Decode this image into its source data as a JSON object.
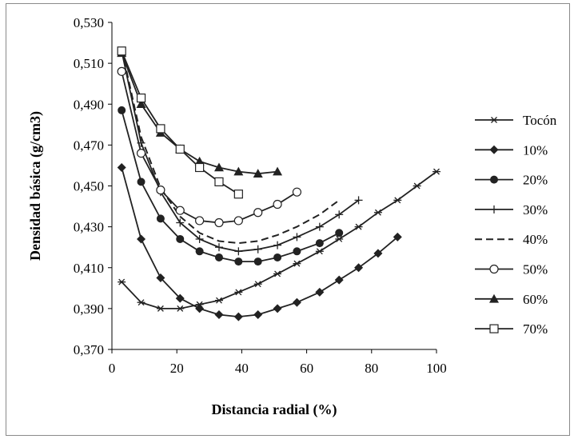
{
  "chart_data": {
    "type": "line",
    "title": "",
    "xlabel": "Distancia radial (%)",
    "ylabel": "Densidad básica (g/cm3)",
    "xlim": [
      0,
      100
    ],
    "ylim": [
      0.37,
      0.53
    ],
    "xticks": [
      "0",
      "20",
      "40",
      "60",
      "80",
      "100"
    ],
    "yticks": [
      "0,370",
      "0,390",
      "0,410",
      "0,430",
      "0,450",
      "0,470",
      "0,490",
      "0,510",
      "0,530"
    ],
    "grid": false,
    "legend_position": "right",
    "line_color": "#222222",
    "series": [
      {
        "name": "Tocón",
        "marker": "star",
        "x": [
          3,
          9,
          15,
          21,
          27,
          33,
          39,
          45,
          51,
          57,
          64,
          70,
          76,
          82,
          88,
          94,
          100
        ],
        "y": [
          0.403,
          0.393,
          0.39,
          0.39,
          0.392,
          0.394,
          0.398,
          0.402,
          0.407,
          0.412,
          0.418,
          0.424,
          0.43,
          0.437,
          0.443,
          0.45,
          0.457
        ]
      },
      {
        "name": "10%",
        "marker": "diamond",
        "x": [
          3,
          9,
          15,
          21,
          27,
          33,
          39,
          45,
          51,
          57,
          64,
          70,
          76,
          82,
          88
        ],
        "y": [
          0.459,
          0.424,
          0.405,
          0.395,
          0.39,
          0.387,
          0.386,
          0.387,
          0.39,
          0.393,
          0.398,
          0.404,
          0.41,
          0.417,
          0.425
        ]
      },
      {
        "name": "20%",
        "marker": "circle-filled",
        "x": [
          3,
          9,
          15,
          21,
          27,
          33,
          39,
          45,
          51,
          57,
          64,
          70
        ],
        "y": [
          0.487,
          0.452,
          0.434,
          0.424,
          0.418,
          0.415,
          0.413,
          0.413,
          0.415,
          0.418,
          0.422,
          0.427
        ]
      },
      {
        "name": "30%",
        "marker": "plus",
        "x": [
          3,
          9,
          15,
          21,
          27,
          33,
          39,
          45,
          51,
          57,
          64,
          70,
          76
        ],
        "y": [
          0.516,
          0.471,
          0.447,
          0.432,
          0.424,
          0.42,
          0.418,
          0.419,
          0.421,
          0.425,
          0.43,
          0.436,
          0.443
        ]
      },
      {
        "name": "40%",
        "marker": "dash",
        "x": [
          3,
          9,
          15,
          21,
          27,
          33,
          39,
          45,
          51,
          57,
          64,
          70
        ],
        "y": [
          0.517,
          0.474,
          0.449,
          0.435,
          0.427,
          0.423,
          0.422,
          0.423,
          0.426,
          0.43,
          0.436,
          0.443
        ]
      },
      {
        "name": "50%",
        "marker": "circle-open",
        "x": [
          3,
          9,
          15,
          21,
          27,
          33,
          39,
          45,
          51,
          57
        ],
        "y": [
          0.506,
          0.466,
          0.448,
          0.438,
          0.433,
          0.432,
          0.433,
          0.437,
          0.441,
          0.447
        ]
      },
      {
        "name": "60%",
        "marker": "triangle",
        "x": [
          3,
          9,
          15,
          21,
          27,
          33,
          39,
          45,
          51
        ],
        "y": [
          0.515,
          0.49,
          0.476,
          0.468,
          0.462,
          0.459,
          0.457,
          0.456,
          0.457
        ]
      },
      {
        "name": "70%",
        "marker": "square-open",
        "x": [
          3,
          9,
          15,
          21,
          27,
          33,
          39
        ],
        "y": [
          0.516,
          0.493,
          0.478,
          0.468,
          0.459,
          0.452,
          0.446
        ]
      }
    ]
  }
}
